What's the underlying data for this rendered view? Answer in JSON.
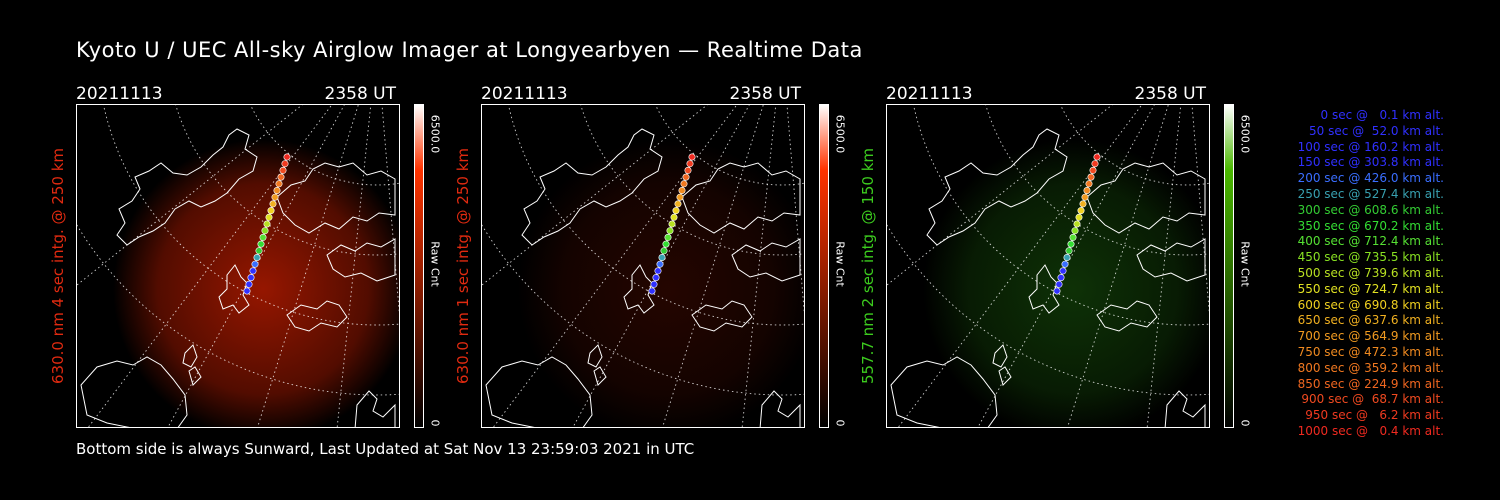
{
  "title": "Kyoto U / UEC All-sky Airglow Imager at Longyearbyen — Realtime Data",
  "footer": "Bottom side is always Sunward, Last Updated at Sat Nov 13 23:59:03 2021 in UTC",
  "panels": [
    {
      "date": "20211113",
      "time": "2358 UT",
      "label": "630.0 nm 4 sec intg. @ 250 km",
      "label_color": "#e02a10",
      "cbar_max": "6500.0",
      "cbar_unit": "Raw Cnt",
      "cbar_min": "0",
      "cbar_color": "#ff3300",
      "glow_color": "#c81e00",
      "glow_level": 0.75
    },
    {
      "date": "20211113",
      "time": "2358 UT",
      "label": "630.0 nm 1 sec intg. @ 250 km",
      "label_color": "#e02a10",
      "cbar_max": "6500.0",
      "cbar_unit": "Raw Cnt",
      "cbar_min": "0",
      "cbar_color": "#ff3300",
      "glow_color": "#7a1200",
      "glow_level": 0.3
    },
    {
      "date": "20211113",
      "time": "2358 UT",
      "label": "557.7 nm 2 sec intg. @ 150 km",
      "label_color": "#3ccc1e",
      "cbar_max": "6500.0",
      "cbar_unit": "Raw Cnt",
      "cbar_min": "0",
      "cbar_color": "#4ab800",
      "glow_color": "#1f6e0e",
      "glow_level": 0.45
    }
  ],
  "legend": [
    {
      "text": "0 sec @   0.1 km alt.",
      "color": "#3030ff"
    },
    {
      "text": "50 sec @  52.0 km alt.",
      "color": "#3030ff"
    },
    {
      "text": "100 sec @ 160.2 km alt.",
      "color": "#3030ff"
    },
    {
      "text": "150 sec @ 303.8 km alt.",
      "color": "#3030ff"
    },
    {
      "text": "200 sec @ 426.0 km alt.",
      "color": "#3a6eff"
    },
    {
      "text": "250 sec @ 527.4 km alt.",
      "color": "#38a0b0"
    },
    {
      "text": "300 sec @ 608.6 km alt.",
      "color": "#33cc33"
    },
    {
      "text": "350 sec @ 670.2 km alt.",
      "color": "#33dd33"
    },
    {
      "text": "400 sec @ 712.4 km alt.",
      "color": "#55e033"
    },
    {
      "text": "450 sec @ 735.5 km alt.",
      "color": "#88e022"
    },
    {
      "text": "500 sec @ 739.6 km alt.",
      "color": "#b8e022"
    },
    {
      "text": "550 sec @ 724.7 km alt.",
      "color": "#e0e022"
    },
    {
      "text": "600 sec @ 690.8 km alt.",
      "color": "#f0d020"
    },
    {
      "text": "650 sec @ 637.6 km alt.",
      "color": "#f0b020"
    },
    {
      "text": "700 sec @ 564.9 km alt.",
      "color": "#f09a20"
    },
    {
      "text": "750 sec @ 472.3 km alt.",
      "color": "#f08a20"
    },
    {
      "text": "800 sec @ 359.2 km alt.",
      "color": "#f07820"
    },
    {
      "text": "850 sec @ 224.9 km alt.",
      "color": "#f06620"
    },
    {
      "text": "900 sec @  68.7 km alt.",
      "color": "#f04a20"
    },
    {
      "text": "950 sec @   6.2 km alt.",
      "color": "#f03a20"
    },
    {
      "text": "1000 sec @   0.4 km alt.",
      "color": "#f02a20"
    }
  ]
}
